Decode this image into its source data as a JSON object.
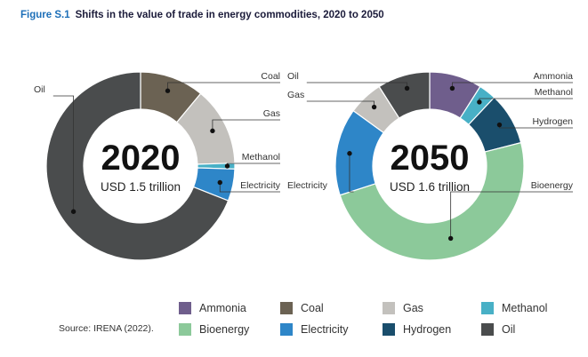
{
  "figure": {
    "label": "Figure S.1",
    "title": "Shifts in the value of trade in energy commodities, 2020 to 2050"
  },
  "source": "Source: IRENA (2022).",
  "legend": [
    {
      "name": "Ammonia",
      "color": "#6f5e8c"
    },
    {
      "name": "Coal",
      "color": "#6b6253"
    },
    {
      "name": "Gas",
      "color": "#c3c1bd"
    },
    {
      "name": "Methanol",
      "color": "#48b0c6"
    },
    {
      "name": "Bioenergy",
      "color": "#8cc99a"
    },
    {
      "name": "Electricity",
      "color": "#2e86c8"
    },
    {
      "name": "Hydrogen",
      "color": "#1a4e6c"
    },
    {
      "name": "Oil",
      "color": "#4a4c4d"
    }
  ],
  "chart_data": [
    {
      "type": "pie",
      "year": "2020",
      "total": "USD 1.5 trillion",
      "unit": "percent share (estimated)",
      "slices": [
        {
          "name": "Coal",
          "value": 11,
          "color": "#6b6253"
        },
        {
          "name": "Gas",
          "value": 13.5,
          "color": "#c3c1bd"
        },
        {
          "name": "Methanol",
          "value": 1,
          "color": "#48b0c6"
        },
        {
          "name": "Electricity",
          "value": 5.5,
          "color": "#2e86c8"
        },
        {
          "name": "Oil",
          "value": 69,
          "color": "#4a4c4d"
        }
      ]
    },
    {
      "type": "pie",
      "year": "2050",
      "total": "USD 1.6 trillion",
      "unit": "percent share (estimated)",
      "slices": [
        {
          "name": "Ammonia",
          "value": 9,
          "color": "#6f5e8c"
        },
        {
          "name": "Methanol",
          "value": 3,
          "color": "#48b0c6"
        },
        {
          "name": "Hydrogen",
          "value": 9,
          "color": "#1a4e6c"
        },
        {
          "name": "Bioenergy",
          "value": 49,
          "color": "#8cc99a"
        },
        {
          "name": "Electricity",
          "value": 15,
          "color": "#2e86c8"
        },
        {
          "name": "Gas",
          "value": 6,
          "color": "#c3c1bd"
        },
        {
          "name": "Oil",
          "value": 9,
          "color": "#4a4c4d"
        }
      ]
    }
  ]
}
